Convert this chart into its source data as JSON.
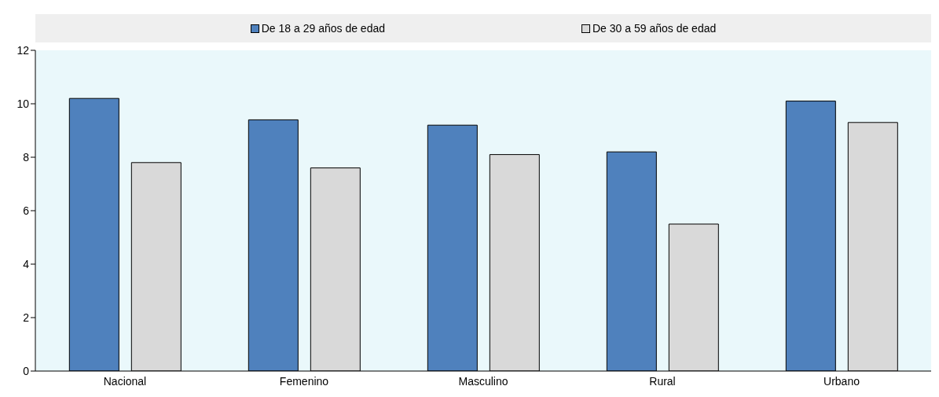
{
  "chart_data": {
    "type": "bar",
    "categories": [
      "Nacional",
      "Femenino",
      "Masculino",
      "Rural",
      "Urbano"
    ],
    "series": [
      {
        "name": "De 18 a 29 años de edad",
        "color": "#4f81bd",
        "values": [
          10.2,
          9.4,
          9.2,
          8.2,
          10.1
        ]
      },
      {
        "name": "De 30 a 59 años de edad",
        "color": "#d9d9d9",
        "values": [
          7.8,
          7.6,
          8.1,
          5.5,
          9.3
        ]
      }
    ],
    "ylim": [
      0,
      12
    ],
    "yticks": [
      0,
      2,
      4,
      6,
      8,
      10,
      12
    ],
    "grid": false,
    "legend": "top"
  }
}
